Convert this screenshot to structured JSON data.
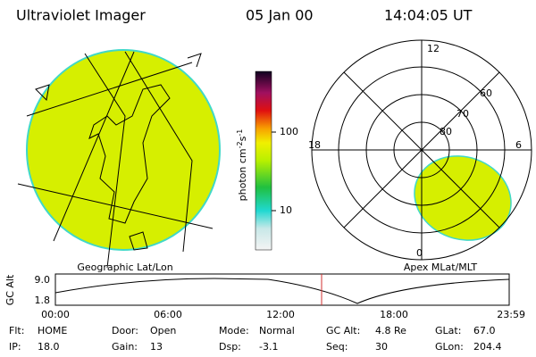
{
  "header": {
    "title": "Ultraviolet Imager",
    "date": "05 Jan 00",
    "time": "14:04:05 UT"
  },
  "geo_panel": {
    "label": "Geographic Lat/Lon"
  },
  "colorbar": {
    "unit": "photon cm",
    "exp1": "-2",
    "unit2": "s",
    "exp2": "-1",
    "ticks": [
      "100",
      "10"
    ]
  },
  "polar_panel": {
    "label": "Apex MLat/MLT",
    "mlt_labels": [
      "12",
      "18",
      "6",
      "0"
    ],
    "lat_labels": [
      "60",
      "70",
      "80"
    ]
  },
  "timeline": {
    "y_label": "GC Alt",
    "y_ticks": [
      "9.0",
      "1.8"
    ],
    "x_ticks": [
      "00:00",
      "06:00",
      "12:00",
      "18:00",
      "23:59"
    ]
  },
  "status": {
    "rows": [
      [
        [
          "Flt:",
          "HOME"
        ],
        [
          "Door:",
          "Open"
        ],
        [
          "Mode:",
          "Normal"
        ],
        [
          "GC Alt:",
          "4.8 Re"
        ],
        [
          "GLat:",
          "67.0"
        ]
      ],
      [
        [
          "IP:",
          "18.0"
        ],
        [
          "Gain:",
          "13"
        ],
        [
          "Dsp:",
          "-3.1"
        ],
        [
          "Seq:",
          "30"
        ],
        [
          "GLon:",
          "204.4"
        ]
      ]
    ]
  }
}
